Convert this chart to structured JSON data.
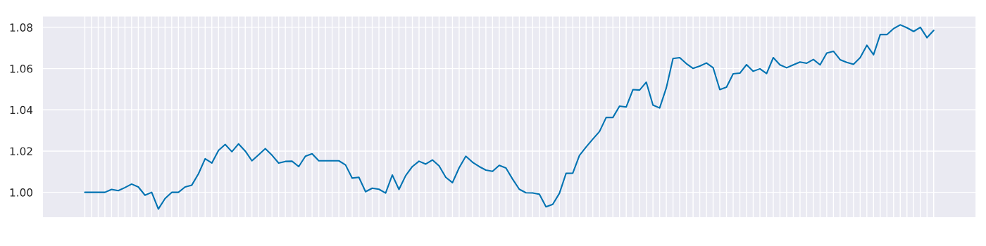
{
  "chart_data": {
    "type": "line",
    "categories": [
      null,
      null,
      null,
      null,
      null,
      null,
      null,
      null,
      null,
      null,
      null,
      null,
      null,
      null,
      null,
      null,
      null,
      null,
      null,
      null,
      null,
      null,
      null,
      null,
      null,
      null,
      null,
      null,
      null,
      null,
      null,
      null,
      null,
      null,
      null,
      null,
      null,
      null,
      null,
      null,
      null,
      null,
      null,
      null,
      null,
      null,
      null,
      null,
      null,
      null,
      null,
      null,
      null,
      null,
      null,
      null,
      null,
      null,
      null,
      null,
      null,
      null,
      null,
      null,
      null,
      null,
      null,
      null,
      null,
      null,
      null,
      null,
      null,
      null,
      null,
      null,
      null,
      null,
      null,
      null,
      null,
      null,
      null,
      null,
      null,
      null,
      null,
      null,
      null,
      null,
      null,
      null,
      null,
      null,
      null,
      null,
      null,
      null,
      null,
      null,
      null,
      null,
      null,
      null,
      null,
      null,
      null,
      null,
      null,
      null,
      null,
      null,
      null,
      null,
      null,
      null,
      null,
      null,
      null,
      null,
      null,
      null,
      null,
      null,
      null,
      null,
      null,
      null
    ],
    "series": [
      {
        "color": "#0173b2",
        "values": [
          1.0,
          1.0,
          1.0,
          1.0,
          1.0014,
          1.0008,
          1.0023,
          1.004,
          1.0026,
          0.9986,
          1.0,
          0.9919,
          0.997,
          1.0,
          1.0,
          1.0026,
          1.0035,
          1.009,
          1.0163,
          1.0142,
          1.0203,
          1.0232,
          1.0197,
          1.0235,
          1.02,
          1.0153,
          1.0182,
          1.0212,
          1.018,
          1.0142,
          1.015,
          1.0151,
          1.0125,
          1.0175,
          1.0187,
          1.0153,
          1.0153,
          1.0153,
          1.0153,
          1.0133,
          1.0069,
          1.0073,
          1.0003,
          1.002,
          1.0015,
          0.9997,
          1.0084,
          1.0014,
          1.0081,
          1.0125,
          1.0151,
          1.0137,
          1.0157,
          1.0128,
          1.0073,
          1.0047,
          1.0119,
          1.0175,
          1.0146,
          1.0125,
          1.0108,
          1.0102,
          1.0131,
          1.0118,
          1.0064,
          1.0015,
          0.9998,
          0.9997,
          0.9991,
          0.993,
          0.9942,
          0.9995,
          1.0092,
          1.0093,
          1.0179,
          1.022,
          1.0258,
          1.0295,
          1.0363,
          1.0363,
          1.0418,
          1.0414,
          1.0498,
          1.0496,
          1.0534,
          1.0423,
          1.0409,
          1.0507,
          1.0649,
          1.0653,
          1.0624,
          1.0601,
          1.0612,
          1.0627,
          1.0604,
          1.0498,
          1.051,
          1.0575,
          1.0578,
          1.0619,
          1.0587,
          1.0599,
          1.0576,
          1.0653,
          1.0618,
          1.0604,
          1.0618,
          1.0632,
          1.0626,
          1.0644,
          1.0618,
          1.0675,
          1.0684,
          1.0643,
          1.063,
          1.0621,
          1.0653,
          1.0713,
          1.0667,
          1.0765,
          1.0765,
          1.0794,
          1.0812,
          1.0798,
          1.078,
          1.08,
          1.075,
          1.0785
        ]
      }
    ],
    "ylim": [
      0.9877,
      1.0855
    ],
    "yticks": [
      {
        "value": 1.0,
        "label": "1.00"
      },
      {
        "value": 1.02,
        "label": "1.02"
      },
      {
        "value": 1.04,
        "label": "1.04"
      },
      {
        "value": 1.06,
        "label": "1.06"
      },
      {
        "value": 1.08,
        "label": "1.08"
      }
    ],
    "grid": true,
    "marker": "none",
    "line_style": "solid"
  }
}
